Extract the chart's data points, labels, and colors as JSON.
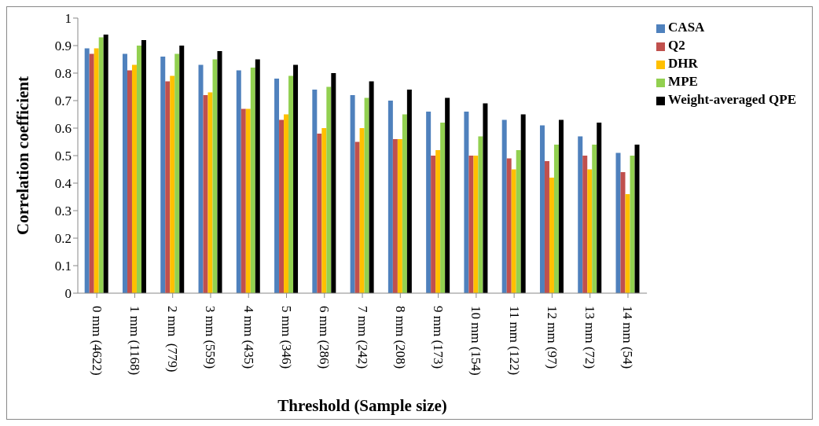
{
  "chart_data": {
    "type": "bar",
    "xlabel": "Threshold (Sample size)",
    "ylabel": "Correlation coefficient",
    "categories": [
      "0 mm (4622)",
      "1 mm (1168)",
      "2 mm  (779)",
      "3 mm (559)",
      "4 mm (435)",
      "5 mm (346)",
      "6 mm (286)",
      "7 mm (242)",
      "8 mm (208)",
      "9 mm (173)",
      "10 mm (154)",
      "11 mm (122)",
      "12 mm (97)",
      "13 mm (72)",
      "14 mm (54)"
    ],
    "series": [
      {
        "name": "CASA",
        "color": "#4f81bd",
        "values": [
          0.89,
          0.87,
          0.86,
          0.83,
          0.81,
          0.78,
          0.74,
          0.72,
          0.7,
          0.66,
          0.66,
          0.63,
          0.61,
          0.57,
          0.51
        ]
      },
      {
        "name": "Q2",
        "color": "#c0504d",
        "values": [
          0.87,
          0.81,
          0.77,
          0.72,
          0.67,
          0.63,
          0.58,
          0.55,
          0.56,
          0.5,
          0.5,
          0.49,
          0.48,
          0.5,
          0.44
        ]
      },
      {
        "name": "DHR",
        "color": "#ffc000",
        "values": [
          0.89,
          0.83,
          0.79,
          0.73,
          0.67,
          0.65,
          0.6,
          0.6,
          0.56,
          0.52,
          0.5,
          0.45,
          0.42,
          0.45,
          0.36
        ]
      },
      {
        "name": "MPE",
        "color": "#92d050",
        "values": [
          0.93,
          0.9,
          0.87,
          0.85,
          0.82,
          0.79,
          0.75,
          0.71,
          0.65,
          0.62,
          0.57,
          0.52,
          0.54,
          0.54,
          0.5
        ]
      },
      {
        "name": "Weight-averaged QPE",
        "color": "#000000",
        "values": [
          0.94,
          0.92,
          0.9,
          0.88,
          0.85,
          0.83,
          0.8,
          0.77,
          0.74,
          0.71,
          0.69,
          0.65,
          0.63,
          0.62,
          0.54
        ]
      }
    ],
    "ylim": [
      0,
      1
    ],
    "yticks": [
      0,
      0.1,
      0.2,
      0.3,
      0.4,
      0.5,
      0.6,
      0.7,
      0.8,
      0.9,
      1
    ],
    "grid": false,
    "legend": "top right"
  }
}
